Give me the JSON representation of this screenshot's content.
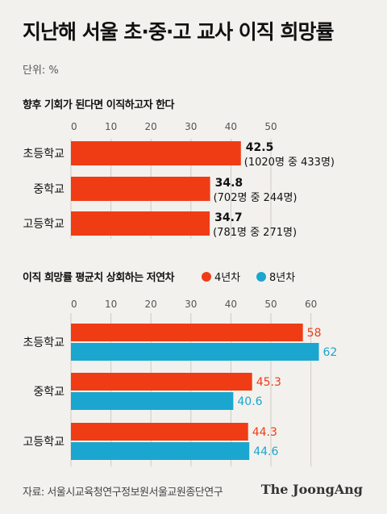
{
  "title": "지난해 서울 초·중·고 교사 이직 희망률",
  "unit": "단위: %",
  "source": "자료: 서울시교육청연구정보원서울교원종단연구",
  "brand": "The JoongAng",
  "colors": {
    "orange": "#f03c14",
    "blue": "#1aa6cf"
  },
  "chart_data": [
    {
      "type": "bar",
      "orientation": "horizontal",
      "title": "향후 기회가 된다면 이직하고자 한다",
      "categories": [
        "초등학교",
        "중학교",
        "고등학교"
      ],
      "ticks": [
        0,
        10,
        20,
        30,
        40,
        50
      ],
      "xlim": [
        0,
        50
      ],
      "series": [
        {
          "values": [
            42.5,
            34.8,
            34.7
          ]
        }
      ],
      "notes": [
        "(1020명 중 433명)",
        "(702명 중 244명)",
        "(781명 중 271명)"
      ],
      "value_labels": [
        "42.5",
        "34.8",
        "34.7"
      ]
    },
    {
      "type": "bar",
      "orientation": "horizontal",
      "title": "이직 희망률 평균치 상회하는 저연차",
      "categories": [
        "초등학교",
        "중학교",
        "고등학교"
      ],
      "ticks": [
        0,
        10,
        20,
        30,
        40,
        50,
        60
      ],
      "xlim": [
        0,
        60
      ],
      "series": [
        {
          "name": "4년차",
          "values": [
            58,
            45.3,
            44.3
          ],
          "labels": [
            "58",
            "45.3",
            "44.3"
          ]
        },
        {
          "name": "8년차",
          "values": [
            62,
            40.6,
            44.6
          ],
          "labels": [
            "62",
            "40.6",
            "44.6"
          ]
        }
      ]
    }
  ]
}
